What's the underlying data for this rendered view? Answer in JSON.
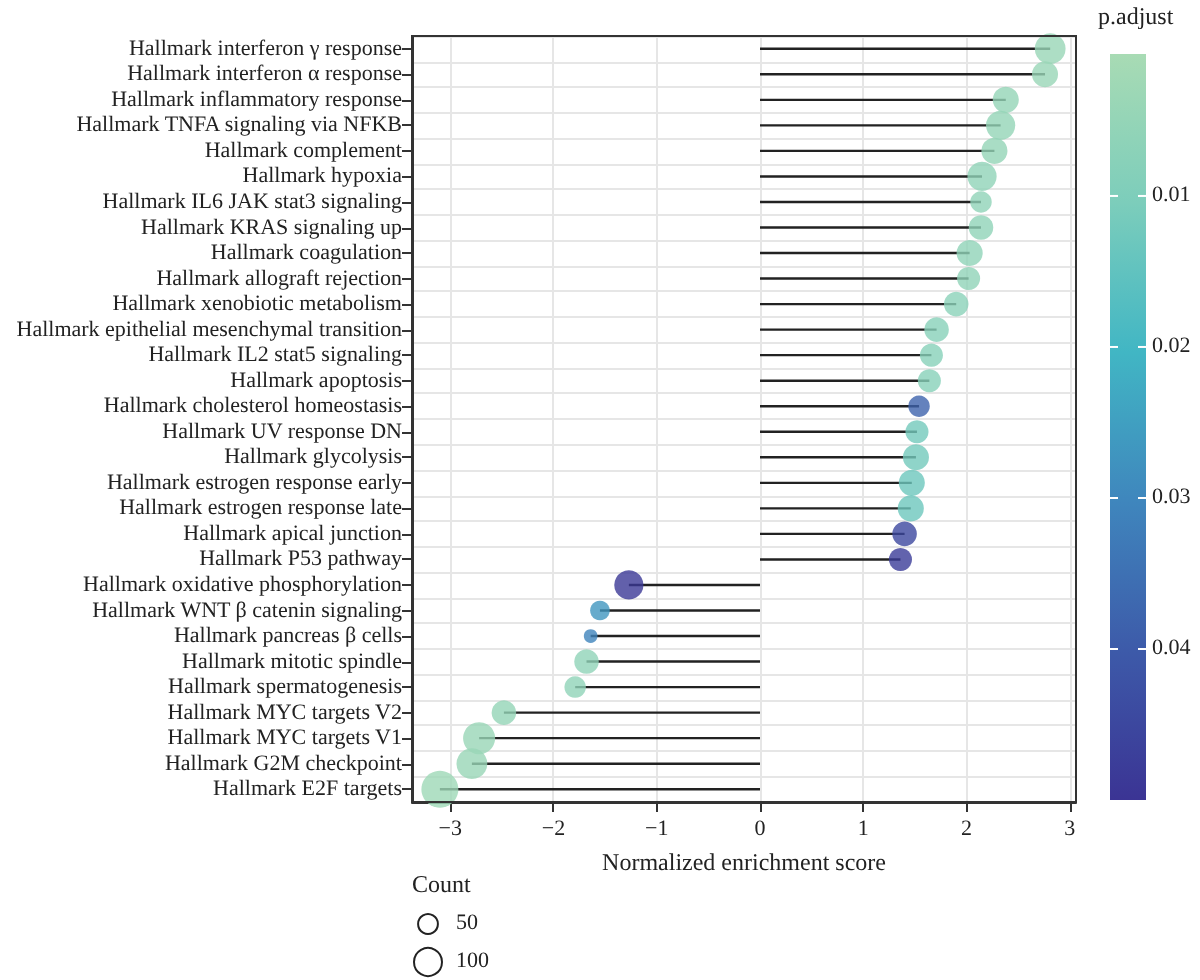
{
  "chart_data": {
    "type": "lollipop",
    "orientation": "horizontal",
    "xlabel": "Normalized enrichment score",
    "clabel": "p.adjust",
    "legend_title": "Count",
    "categories": [
      "Hallmark interferon γ response",
      "Hallmark interferon α response",
      "Hallmark inflammatory response",
      "Hallmark TNFA signaling via NFKB",
      "Hallmark complement",
      "Hallmark hypoxia",
      "Hallmark IL6 JAK stat3 signaling",
      "Hallmark KRAS signaling up",
      "Hallmark coagulation",
      "Hallmark allograft rejection",
      "Hallmark xenobiotic metabolism",
      "Hallmark epithelial mesenchymal transition",
      "Hallmark IL2 stat5 signaling",
      "Hallmark apoptosis",
      "Hallmark cholesterol homeostasis",
      "Hallmark UV response DN",
      "Hallmark glycolysis",
      "Hallmark estrogen response early",
      "Hallmark estrogen response late",
      "Hallmark apical junction",
      "Hallmark P53 pathway",
      "Hallmark oxidative phosphorylation",
      "Hallmark WNT β catenin signaling",
      "Hallmark pancreas β cells",
      "Hallmark mitotic spindle",
      "Hallmark spermatogenesis",
      "Hallmark MYC targets V2",
      "Hallmark MYC targets V1",
      "Hallmark G2M checkpoint",
      "Hallmark E2F targets"
    ],
    "values": [
      2.81,
      2.76,
      2.38,
      2.33,
      2.27,
      2.15,
      2.14,
      2.14,
      2.03,
      2.02,
      1.9,
      1.71,
      1.66,
      1.64,
      1.54,
      1.52,
      1.51,
      1.47,
      1.46,
      1.4,
      1.36,
      -1.27,
      -1.55,
      -1.64,
      -1.68,
      -1.79,
      -2.48,
      -2.72,
      -2.79,
      -3.1
    ],
    "sizes": [
      121,
      87,
      87,
      109,
      87,
      109,
      59,
      77,
      87,
      68,
      77,
      77,
      68,
      68,
      59,
      68,
      87,
      87,
      87,
      77,
      68,
      109,
      49,
      24,
      77,
      59,
      77,
      131,
      121,
      174
    ],
    "size_legend": [
      50,
      100
    ],
    "cvalues": [
      0.004,
      0.004,
      0.005,
      0.005,
      0.005,
      0.006,
      0.006,
      0.006,
      0.006,
      0.006,
      0.007,
      0.008,
      0.008,
      0.008,
      0.038,
      0.012,
      0.012,
      0.013,
      0.013,
      0.045,
      0.048,
      0.049,
      0.027,
      0.031,
      0.006,
      0.006,
      0.005,
      0.004,
      0.004,
      0.003
    ],
    "clim": [
      0.0006,
      0.05
    ],
    "cticks": [
      0.01,
      0.02,
      0.03,
      0.04
    ],
    "xlim": [
      -3.37,
      3.06
    ],
    "xticks": [
      {
        "value": -3,
        "label": "−3"
      },
      {
        "value": -2,
        "label": "−2"
      },
      {
        "value": -1,
        "label": "−1"
      },
      0,
      1,
      2,
      3
    ],
    "grid": true,
    "marker": "circle"
  }
}
